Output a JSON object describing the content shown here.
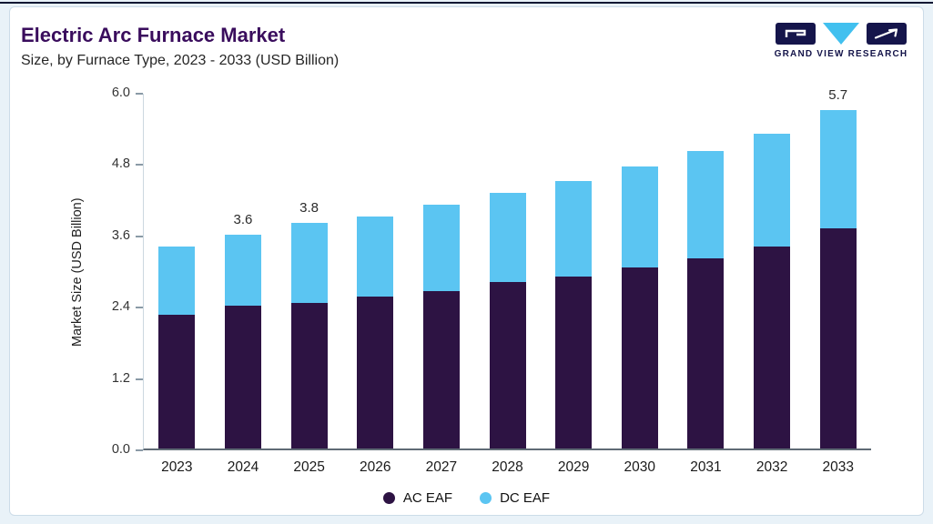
{
  "header": {
    "title": "Electric Arc Furnace Market",
    "subtitle": "Size, by Furnace Type, 2023 - 2033 (USD Billion)"
  },
  "logo": {
    "brand": "GRAND VIEW RESEARCH",
    "colors": {
      "dark": "#15154b",
      "cyan": "#41c0ef"
    }
  },
  "chart_data": {
    "type": "bar",
    "stacked": true,
    "title": "Electric Arc Furnace Market Size, by Furnace Type, 2023 - 2033 (USD Billion)",
    "categories": [
      "2023",
      "2024",
      "2025",
      "2026",
      "2027",
      "2028",
      "2029",
      "2030",
      "2031",
      "2032",
      "2033"
    ],
    "series": [
      {
        "name": "AC EAF",
        "color": "#2d1343",
        "values": [
          2.25,
          2.4,
          2.45,
          2.55,
          2.65,
          2.8,
          2.9,
          3.05,
          3.2,
          3.4,
          3.7
        ]
      },
      {
        "name": "DC EAF",
        "color": "#5bc5f2",
        "values": [
          1.15,
          1.2,
          1.35,
          1.35,
          1.45,
          1.5,
          1.6,
          1.7,
          1.8,
          1.9,
          2.0
        ]
      }
    ],
    "point_labels": [
      "",
      "3.6",
      "3.8",
      "",
      "",
      "",
      "",
      "",
      "",
      "",
      "5.7"
    ],
    "xlabel": "",
    "ylabel": "Market Size (USD Billion)",
    "yticks": [
      "0.0",
      "1.2",
      "2.4",
      "3.6",
      "4.8",
      "6.0"
    ],
    "ylim": [
      0,
      6
    ],
    "grid": false,
    "legend_position": "bottom",
    "legend": [
      {
        "label": "AC EAF",
        "color": "#2d1343"
      },
      {
        "label": "DC EAF",
        "color": "#5bc5f2"
      }
    ]
  }
}
